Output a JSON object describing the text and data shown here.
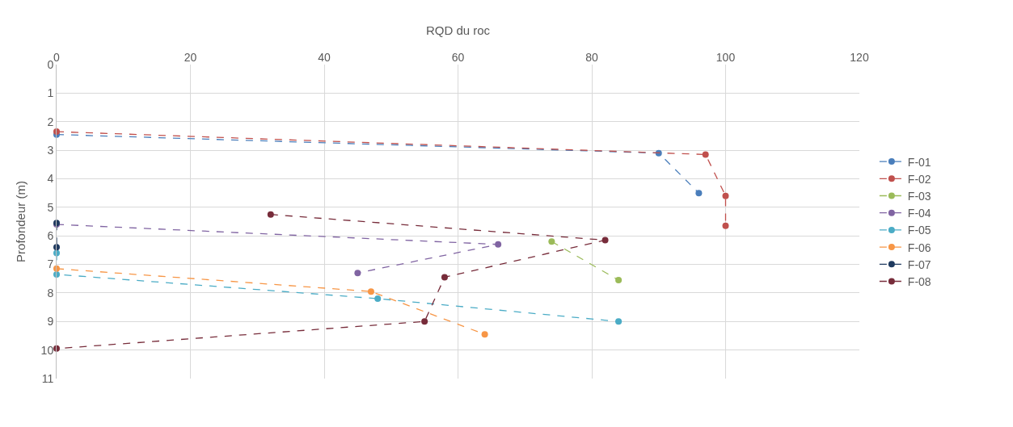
{
  "chart_data": {
    "type": "line",
    "xlabel": "RQD du roc",
    "ylabel": "Profondeur (m)",
    "xlim": [
      0,
      120
    ],
    "xticks": [
      0,
      20,
      40,
      60,
      80,
      100,
      120
    ],
    "ylim": [
      11,
      0
    ],
    "yticks": [
      0,
      1,
      2,
      3,
      4,
      5,
      6,
      7,
      8,
      9,
      10,
      11
    ],
    "grid": true,
    "legend": "right",
    "marker": "circle",
    "line_style": "dashed",
    "series": [
      {
        "name": "F-01",
        "color": "#4a7ebb",
        "x": [
          0,
          90,
          96
        ],
        "values": [
          2.45,
          3.1,
          4.5
        ]
      },
      {
        "name": "F-02",
        "color": "#c0504d",
        "x": [
          0,
          97,
          100,
          100
        ],
        "values": [
          2.35,
          3.15,
          4.6,
          5.65
        ]
      },
      {
        "name": "F-03",
        "color": "#9bbb59",
        "x": [
          74,
          84
        ],
        "values": [
          6.2,
          7.55
        ]
      },
      {
        "name": "F-04",
        "color": "#8064a2",
        "x": [
          0,
          66,
          45
        ],
        "values": [
          5.6,
          6.3,
          7.3
        ]
      },
      {
        "name": "F-05",
        "color": "#4bacc6",
        "x": [
          0,
          0,
          48,
          84
        ],
        "values": [
          6.6,
          7.35,
          8.2,
          9.0
        ]
      },
      {
        "name": "F-06",
        "color": "#f79646",
        "x": [
          0,
          47,
          64
        ],
        "values": [
          7.15,
          7.95,
          9.45
        ]
      },
      {
        "name": "F-07",
        "color": "#1f3a5f",
        "x": [
          0,
          0
        ],
        "values": [
          5.55,
          6.4
        ]
      },
      {
        "name": "F-08",
        "color": "#772c3a",
        "x": [
          32,
          82,
          58,
          55,
          0
        ],
        "values": [
          5.25,
          6.15,
          7.45,
          9.0,
          9.95
        ]
      }
    ]
  }
}
